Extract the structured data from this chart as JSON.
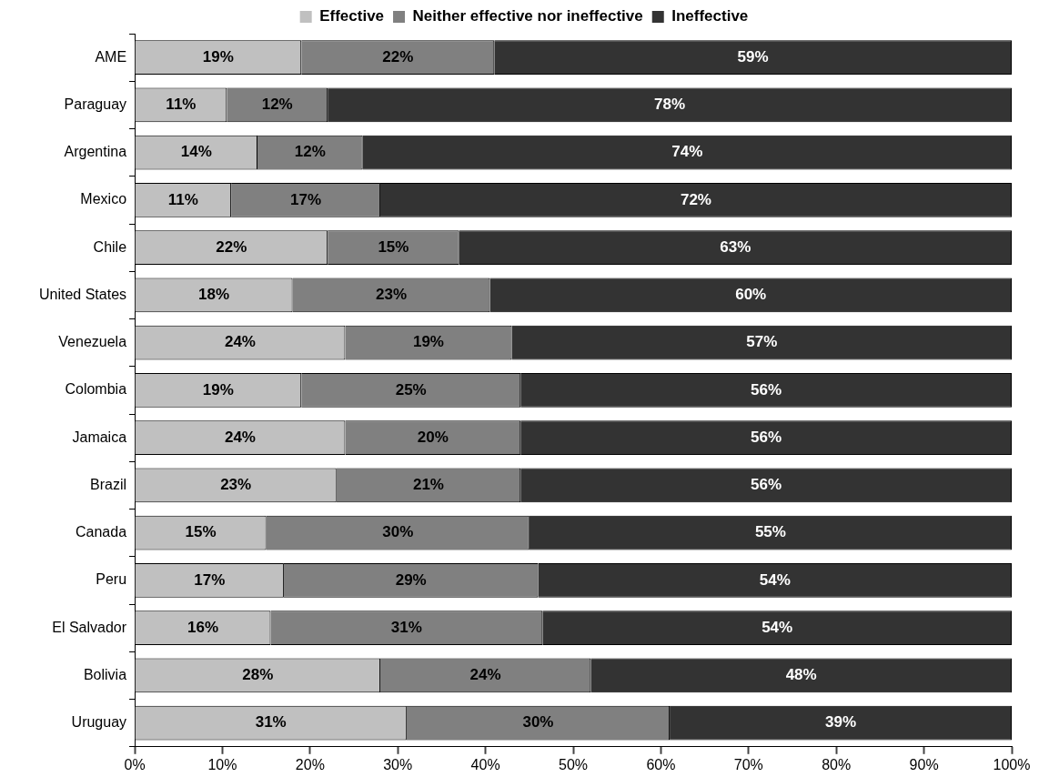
{
  "chart_data": {
    "type": "bar",
    "orientation": "horizontal",
    "stacked": true,
    "legend": "top",
    "grid": false,
    "categories": [
      "AME",
      "Paraguay",
      "Argentina",
      "Mexico",
      "Chile",
      "United States",
      "Venezuela",
      "Colombia",
      "Jamaica",
      "Brazil",
      "Canada",
      "Peru",
      "El Salvador",
      "Bolivia",
      "Uruguay"
    ],
    "series": [
      {
        "name": "Effective",
        "color": "#c0c0c0",
        "values": [
          19,
          10.5,
          14,
          11,
          22,
          18,
          24,
          19,
          24,
          23,
          15,
          17,
          15.5,
          28,
          31
        ],
        "value_labels": [
          "19%",
          "11%",
          "14%",
          "11%",
          "22%",
          "18%",
          "24%",
          "19%",
          "24%",
          "23%",
          "15%",
          "17%",
          "16%",
          "28%",
          "31%"
        ]
      },
      {
        "name": "Neither effective nor ineffective",
        "color": "#808080",
        "values": [
          22,
          11.5,
          12,
          17,
          15,
          22.5,
          19,
          25,
          20,
          21,
          30,
          29,
          31,
          24,
          30
        ],
        "value_labels": [
          "22%",
          "12%",
          "12%",
          "17%",
          "15%",
          "23%",
          "19%",
          "25%",
          "20%",
          "21%",
          "30%",
          "29%",
          "31%",
          "24%",
          "30%"
        ]
      },
      {
        "name": "Ineffective",
        "color": "#333333",
        "values": [
          59,
          78,
          74,
          72,
          63,
          59.5,
          57,
          56,
          56,
          56,
          55,
          54,
          53.5,
          48,
          39
        ],
        "value_labels": [
          "59%",
          "78%",
          "74%",
          "72%",
          "63%",
          "60%",
          "57%",
          "56%",
          "56%",
          "56%",
          "55%",
          "54%",
          "54%",
          "48%",
          "39%"
        ]
      }
    ],
    "xlim": [
      0,
      100
    ],
    "xticks": [
      {
        "value": 0,
        "label": "0%"
      },
      {
        "value": 10,
        "label": "10%"
      },
      {
        "value": 20,
        "label": "20%"
      },
      {
        "value": 30,
        "label": "30%"
      },
      {
        "value": 40,
        "label": "40%"
      },
      {
        "value": 50,
        "label": "50%"
      },
      {
        "value": 60,
        "label": "60%"
      },
      {
        "value": 70,
        "label": "70%"
      },
      {
        "value": 80,
        "label": "80%"
      },
      {
        "value": 90,
        "label": "90%"
      },
      {
        "value": 100,
        "label": "100%"
      }
    ]
  }
}
